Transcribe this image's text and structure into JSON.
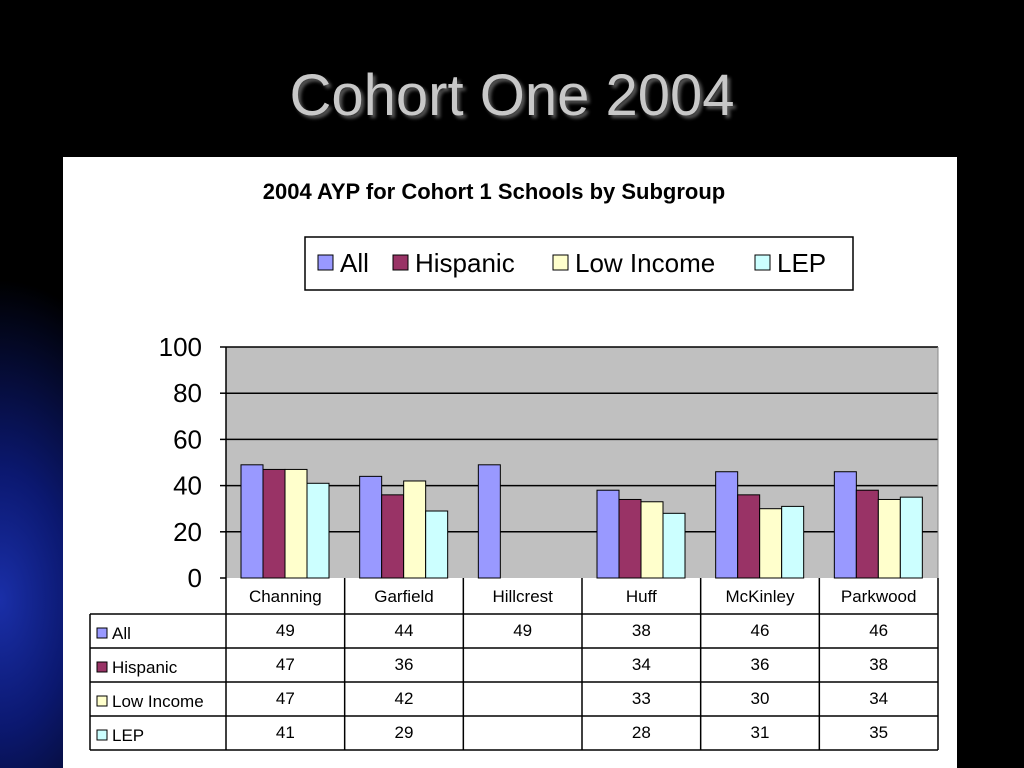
{
  "slide": {
    "title": "Cohort One 2004"
  },
  "colors": {
    "all": "#9999ff",
    "hispanic": "#993366",
    "low_income": "#ffffcc",
    "lep": "#ccffff",
    "plot_bg": "#c0c0c0"
  },
  "chart_data": {
    "type": "bar",
    "title": "2004 AYP for Cohort 1 Schools by Subgroup",
    "xlabel": "",
    "ylabel": "",
    "ylim": [
      0,
      100
    ],
    "yticks": [
      "0",
      "20",
      "40",
      "60",
      "80",
      "100"
    ],
    "grid": true,
    "legend_position": "top",
    "categories": [
      "Channing",
      "Garfield",
      "Hillcrest",
      "Huff",
      "McKinley",
      "Parkwood"
    ],
    "series": [
      {
        "name": "All",
        "color": "#9999ff",
        "values": [
          49,
          44,
          49,
          38,
          46,
          46
        ]
      },
      {
        "name": "Hispanic",
        "color": "#993366",
        "values": [
          47,
          36,
          null,
          34,
          36,
          38
        ]
      },
      {
        "name": "Low Income",
        "color": "#ffffcc",
        "values": [
          47,
          42,
          null,
          33,
          30,
          34
        ]
      },
      {
        "name": "LEP",
        "color": "#ccffff",
        "values": [
          41,
          29,
          null,
          28,
          31,
          35
        ]
      }
    ],
    "data_table": true
  }
}
